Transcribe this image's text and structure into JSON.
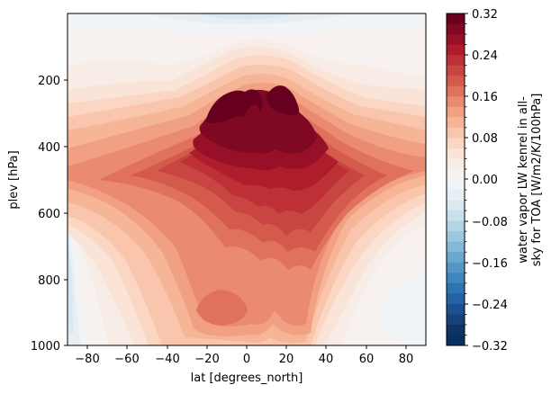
{
  "chart_data": {
    "type": "heatmap",
    "subtype": "filled_contour",
    "title": "",
    "xlabel": "lat [degrees_north]",
    "ylabel": "plev [hPa]",
    "xlim": [
      -90,
      90
    ],
    "ylim": [
      1000,
      10
    ],
    "y_inverted": true,
    "grid": false,
    "x_ticks": [
      -80,
      -60,
      -40,
      -20,
      0,
      20,
      40,
      60,
      80
    ],
    "x_tick_labels": [
      "−80",
      "−60",
      "−40",
      "−20",
      "0",
      "20",
      "40",
      "60",
      "80"
    ],
    "y_ticks": [
      200,
      400,
      600,
      800,
      1000
    ],
    "y_tick_labels": [
      "200",
      "400",
      "600",
      "800",
      "1000"
    ],
    "colormap": "RdBu_r",
    "colorbar": {
      "label_line1": "water vapor LW kenrel in all-",
      "label_line2": "sky for TOA [W/m2/K/100hPa]",
      "vmin": -0.32,
      "vmax": 0.32,
      "level_step": 0.02,
      "ticks": [
        0.32,
        0.24,
        0.16,
        0.08,
        0.0,
        -0.08,
        -0.16,
        -0.24,
        -0.32
      ],
      "tick_labels": [
        "0.32",
        "0.24",
        "0.16",
        "0.08",
        "0.00",
        "−0.08",
        "−0.16",
        "−0.24",
        "−0.32"
      ]
    },
    "features": [
      {
        "description": "twin maxima (>0.30) near 250-300 hPa at about -15 and +18 deg lat",
        "value": 0.31
      },
      {
        "description": "broad tropical upper-troposphere maximum 200-450 hPa, 40S-40N",
        "value": 0.22
      },
      {
        "description": "secondary maxima near 900 hPa at about -18 and +15 deg",
        "value": 0.12
      },
      {
        "description": "slightly negative values near top (~10-50 hPa) across tropics",
        "value": -0.03
      },
      {
        "description": "slightly negative values near 500-950 hPa at -85 deg (Antarctic)",
        "value": -0.04
      },
      {
        "description": "near-zero values at high latitudes above 300 hPa",
        "value": 0.01
      }
    ]
  },
  "axes": {
    "x_label": "lat [degrees_north]",
    "y_label": "plev [hPa]",
    "x_ticks": [
      {
        "label": "−80"
      },
      {
        "label": "−60"
      },
      {
        "label": "−40"
      },
      {
        "label": "−20"
      },
      {
        "label": "0"
      },
      {
        "label": "20"
      },
      {
        "label": "40"
      },
      {
        "label": "60"
      },
      {
        "label": "80"
      }
    ],
    "y_ticks": [
      {
        "label": "200"
      },
      {
        "label": "400"
      },
      {
        "label": "600"
      },
      {
        "label": "800"
      },
      {
        "label": "1000"
      }
    ]
  },
  "colorbar": {
    "label_line1": "water vapor LW kenrel in all-",
    "label_line2": "sky for TOA [W/m2/K/100hPa]",
    "ticks": [
      {
        "label": "0.32"
      },
      {
        "label": "0.24"
      },
      {
        "label": "0.16"
      },
      {
        "label": "0.08"
      },
      {
        "label": "0.00"
      },
      {
        "label": "−0.08"
      },
      {
        "label": "−0.16"
      },
      {
        "label": "−0.24"
      },
      {
        "label": "−0.32"
      }
    ],
    "colors": [
      "#67001f",
      "#7f0823",
      "#981027",
      "#af1d2c",
      "#bd3136",
      "#c84541",
      "#d45a4c",
      "#df715d",
      "#ea8a70",
      "#f1a083",
      "#f6b597",
      "#f9c6ad",
      "#fbd6c3",
      "#fae3d7",
      "#f8ece6",
      "#f7f2ef",
      "#f1f4f6",
      "#e7eff4",
      "#d9e8f1",
      "#c9e0ed",
      "#b3d4e7",
      "#9cc7e0",
      "#83b8d7",
      "#6aa8ce",
      "#5497c5",
      "#3f86bc",
      "#2f74b1",
      "#2462a3",
      "#1b5190",
      "#164279",
      "#0f3463",
      "#053061"
    ]
  }
}
